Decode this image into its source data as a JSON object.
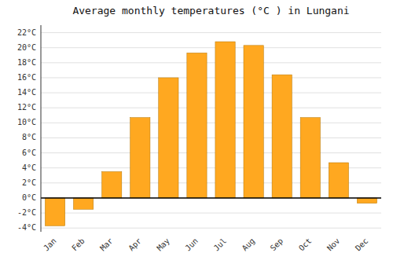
{
  "chart_data": {
    "type": "bar",
    "title": "Average monthly temperatures (°C ) in Lungani",
    "categories": [
      "Jan",
      "Feb",
      "Mar",
      "Apr",
      "May",
      "Jun",
      "Jul",
      "Aug",
      "Sep",
      "Oct",
      "Nov",
      "Dec"
    ],
    "values": [
      -3.7,
      -1.5,
      3.5,
      10.7,
      16.0,
      19.3,
      20.8,
      20.3,
      16.4,
      10.7,
      4.7,
      -0.7
    ],
    "color": "#FFA820",
    "ylim": [
      -4.5,
      23
    ],
    "yticks": [
      {
        "value": -4,
        "label": "-4°C"
      },
      {
        "value": -2,
        "label": "-2°C"
      },
      {
        "value": 0,
        "label": "0°C"
      },
      {
        "value": 2,
        "label": "2°C"
      },
      {
        "value": 4,
        "label": "4°C"
      },
      {
        "value": 6,
        "label": "6°C"
      },
      {
        "value": 8,
        "label": "8°C"
      },
      {
        "value": 10,
        "label": "10°C"
      },
      {
        "value": 12,
        "label": "12°C"
      },
      {
        "value": 14,
        "label": "14°C"
      },
      {
        "value": 16,
        "label": "16°C"
      },
      {
        "value": 18,
        "label": "18°C"
      },
      {
        "value": 20,
        "label": "20°C"
      },
      {
        "value": 22,
        "label": "22°C"
      }
    ],
    "grid": true
  }
}
